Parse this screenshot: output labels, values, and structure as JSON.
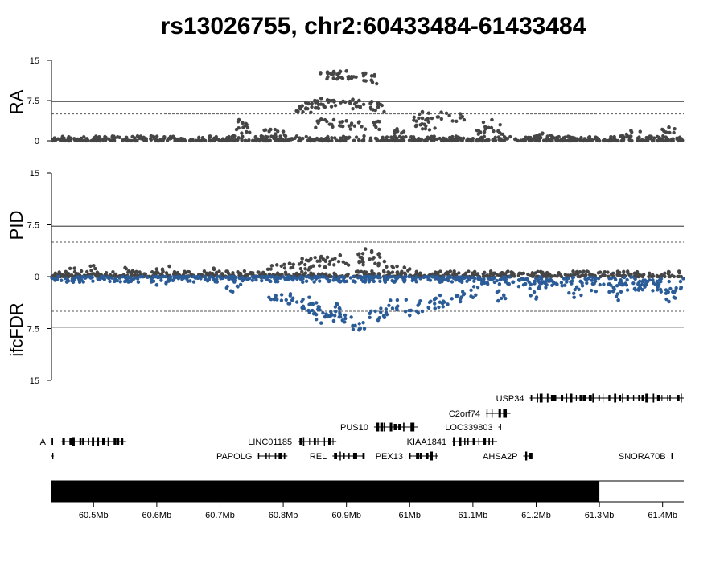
{
  "chart_data": {
    "type": "scatter",
    "title": "rs13026755, chr2:60433484-61433484",
    "x_axis": {
      "range_mb": [
        60.433484,
        61.433484
      ],
      "tick_values_mb": [
        60.5,
        60.6,
        60.7,
        60.8,
        60.9,
        61.0,
        61.1,
        61.2,
        61.3,
        61.4
      ],
      "tick_labels": [
        "60.5Mb",
        "60.6Mb",
        "60.7Mb",
        "60.8Mb",
        "60.9Mb",
        "61Mb",
        "61.1Mb",
        "61.2Mb",
        "61.3Mb",
        "61.4Mb"
      ]
    },
    "panels": [
      {
        "ylabel": "RA",
        "ylim": [
          0,
          15
        ],
        "tick_labels": [
          "0",
          "7.5",
          "15"
        ],
        "tick_values": [
          0,
          7.5,
          15
        ],
        "threshold_solid": 7.3,
        "threshold_dashed": 5,
        "series": [
          {
            "color": "#454545",
            "points": [
              {
                "x": 60.87,
                "y": 12.8
              },
              {
                "x": 60.88,
                "y": 12.9
              },
              {
                "x": 60.89,
                "y": 12.9
              },
              {
                "x": 60.9,
                "y": 13.0
              },
              {
                "x": 60.93,
                "y": 12.6
              },
              {
                "x": 60.94,
                "y": 12.1
              },
              {
                "x": 60.85,
                "y": 7.5
              },
              {
                "x": 60.86,
                "y": 7.9
              },
              {
                "x": 60.87,
                "y": 7.6
              },
              {
                "x": 60.88,
                "y": 7.5
              },
              {
                "x": 60.91,
                "y": 7.7
              },
              {
                "x": 60.92,
                "y": 7.5
              },
              {
                "x": 60.94,
                "y": 7.3
              },
              {
                "x": 60.95,
                "y": 7.0
              },
              {
                "x": 60.83,
                "y": 6.5
              },
              {
                "x": 60.84,
                "y": 6.9
              },
              {
                "x": 61.02,
                "y": 5.4
              },
              {
                "x": 61.05,
                "y": 5.3
              },
              {
                "x": 61.08,
                "y": 5.0
              },
              {
                "x": 60.86,
                "y": 4.0
              },
              {
                "x": 60.88,
                "y": 3.9
              },
              {
                "x": 60.9,
                "y": 3.7
              },
              {
                "x": 60.92,
                "y": 3.5
              },
              {
                "x": 60.95,
                "y": 3.6
              },
              {
                "x": 61.02,
                "y": 4.2
              },
              {
                "x": 61.03,
                "y": 3.5
              },
              {
                "x": 60.73,
                "y": 3.9
              },
              {
                "x": 60.74,
                "y": 2.8
              },
              {
                "x": 60.78,
                "y": 2.1
              },
              {
                "x": 60.8,
                "y": 1.7
              },
              {
                "x": 60.98,
                "y": 2.2
              },
              {
                "x": 61.12,
                "y": 2.2
              },
              {
                "x": 61.14,
                "y": 1.8
              },
              {
                "x": 61.21,
                "y": 1.4
              },
              {
                "x": 61.41,
                "y": 2.5
              },
              {
                "x": 61.35,
                "y": 1.9
              },
              {
                "x": 61.13,
                "y": 3.9
              }
            ]
          }
        ]
      },
      {
        "ylabel": "PID",
        "ylim": [
          0,
          15
        ],
        "tick_labels": [
          "0",
          "7.5",
          "15"
        ],
        "tick_values": [
          0,
          7.5,
          15
        ],
        "threshold_solid": 7.3,
        "threshold_dashed": 5,
        "series": [
          {
            "color": "#454545",
            "points": [
              {
                "x": 60.93,
                "y": 4.0
              },
              {
                "x": 60.94,
                "y": 3.5
              },
              {
                "x": 60.92,
                "y": 3.3
              },
              {
                "x": 60.89,
                "y": 3.1
              },
              {
                "x": 60.87,
                "y": 2.8
              },
              {
                "x": 60.86,
                "y": 2.9
              },
              {
                "x": 60.84,
                "y": 2.3
              },
              {
                "x": 60.83,
                "y": 2.6
              },
              {
                "x": 60.81,
                "y": 1.9
              },
              {
                "x": 60.79,
                "y": 1.7
              },
              {
                "x": 60.96,
                "y": 2.2
              },
              {
                "x": 60.98,
                "y": 1.5
              },
              {
                "x": 61.0,
                "y": 1.1
              },
              {
                "x": 60.55,
                "y": 1.3
              },
              {
                "x": 60.62,
                "y": 1.5
              },
              {
                "x": 60.69,
                "y": 1.2
              },
              {
                "x": 60.5,
                "y": 1.6
              },
              {
                "x": 60.47,
                "y": 1.2
              },
              {
                "x": 60.6,
                "y": 1.1
              }
            ]
          }
        ]
      },
      {
        "ylabel": "ifcFDR",
        "ylim": [
          0,
          15
        ],
        "tick_labels": [
          "0",
          "7.5",
          "15"
        ],
        "tick_values": [
          0,
          7.5,
          15
        ],
        "threshold_solid": 7.3,
        "threshold_dashed": 5,
        "series": [
          {
            "color": "#2b5c98",
            "points": [
              {
                "x": 60.92,
                "y": 7.7
              },
              {
                "x": 60.91,
                "y": 7.1
              },
              {
                "x": 60.88,
                "y": 6.4
              },
              {
                "x": 60.87,
                "y": 5.8
              },
              {
                "x": 60.86,
                "y": 6.7
              },
              {
                "x": 60.89,
                "y": 5.5
              },
              {
                "x": 60.85,
                "y": 5.3
              },
              {
                "x": 60.84,
                "y": 4.9
              },
              {
                "x": 60.83,
                "y": 4.5
              },
              {
                "x": 60.81,
                "y": 3.9
              },
              {
                "x": 60.79,
                "y": 3.3
              },
              {
                "x": 60.95,
                "y": 6.3
              },
              {
                "x": 60.96,
                "y": 5.9
              },
              {
                "x": 60.98,
                "y": 4.8
              },
              {
                "x": 61.0,
                "y": 5.6
              },
              {
                "x": 61.02,
                "y": 5.0
              },
              {
                "x": 61.04,
                "y": 4.6
              },
              {
                "x": 61.06,
                "y": 4.0
              },
              {
                "x": 61.08,
                "y": 3.6
              },
              {
                "x": 61.1,
                "y": 3.0
              },
              {
                "x": 61.14,
                "y": 3.5
              },
              {
                "x": 61.2,
                "y": 3.2
              },
              {
                "x": 61.26,
                "y": 3.0
              },
              {
                "x": 61.33,
                "y": 3.4
              },
              {
                "x": 61.41,
                "y": 3.6
              },
              {
                "x": 60.72,
                "y": 2.2
              },
              {
                "x": 60.6,
                "y": 1.2
              }
            ]
          }
        ]
      }
    ],
    "genes": [
      {
        "name": "USP34",
        "start": 61.1898,
        "end": 61.4335,
        "row": 0,
        "label_side": "left"
      },
      {
        "name": "C2orf74",
        "start": 61.1205,
        "end": 61.1594,
        "row": 1,
        "label_side": "left"
      },
      {
        "name": "PUS10",
        "start": 60.9435,
        "end": 61.0125,
        "row": 2,
        "label_side": "left"
      },
      {
        "name": "LOC339803",
        "start": 61.1403,
        "end": 61.1445,
        "row": 2,
        "label_side": "left"
      },
      {
        "name": "A",
        "start": 60.433484,
        "end": 60.436,
        "row": 3,
        "label_side": "left"
      },
      {
        "name": "",
        "start": 60.4495,
        "end": 60.5515,
        "row": 3,
        "label_side": "none"
      },
      {
        "name": "LINC01185",
        "start": 60.8229,
        "end": 60.8841,
        "row": 3,
        "label_side": "left"
      },
      {
        "name": "KIAA1841",
        "start": 61.0673,
        "end": 61.1383,
        "row": 3,
        "label_side": "left"
      },
      {
        "name": "",
        "start": 60.433484,
        "end": 60.437,
        "row": 4,
        "label_side": "none"
      },
      {
        "name": "PAPOLG",
        "start": 60.7597,
        "end": 60.8066,
        "row": 4,
        "label_side": "left"
      },
      {
        "name": "REL",
        "start": 60.8778,
        "end": 60.9288,
        "row": 4,
        "label_side": "left"
      },
      {
        "name": "PEX13",
        "start": 60.9983,
        "end": 61.0447,
        "row": 4,
        "label_side": "left"
      },
      {
        "name": "AHSA2P",
        "start": 61.1797,
        "end": 61.1941,
        "row": 4,
        "label_side": "left"
      },
      {
        "name": "SNORA70B",
        "start": 61.4139,
        "end": 61.4141,
        "row": 4,
        "label_side": "left"
      }
    ],
    "scale_bar": {
      "start": 60.433484,
      "end": 61.3,
      "fill": "#000000"
    }
  }
}
